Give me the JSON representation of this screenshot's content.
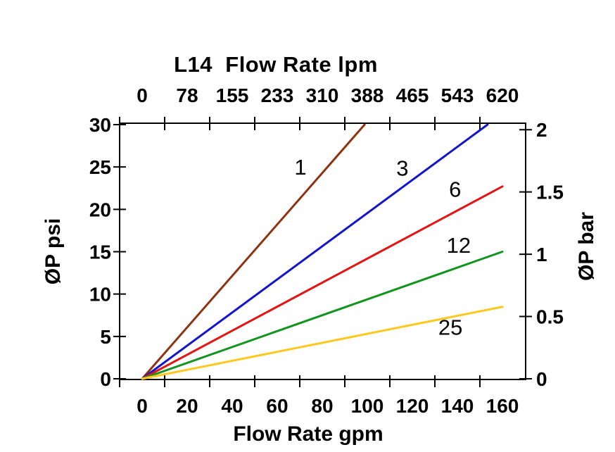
{
  "chart_data": {
    "type": "line",
    "title": "L14  Flow Rate lpm",
    "axes": {
      "top": {
        "label": "L14  Flow Rate lpm",
        "unit": "lpm",
        "ticks": [
          "0",
          "78",
          "155",
          "233",
          "310",
          "388",
          "465",
          "543",
          "620"
        ]
      },
      "bottom": {
        "label": "Flow Rate gpm",
        "unit": "gpm",
        "ticks": [
          "0",
          "20",
          "40",
          "60",
          "80",
          "100",
          "120",
          "140",
          "160"
        ],
        "range": [
          0,
          160
        ]
      },
      "left": {
        "label": "ØP psi",
        "unit": "psi",
        "ticks": [
          "0",
          "5",
          "10",
          "15",
          "20",
          "25",
          "30"
        ],
        "range": [
          0,
          30
        ]
      },
      "right": {
        "label": "ØP bar",
        "unit": "bar",
        "ticks": [
          "0",
          "0.5",
          "1",
          "1.5",
          "2"
        ],
        "range": [
          0,
          2
        ]
      }
    },
    "grid": false,
    "legend": "inline-labels",
    "series": [
      {
        "name": "1",
        "color": "#8C3412",
        "points_gpm_psi": [
          [
            0,
            0
          ],
          [
            98.8,
            30
          ]
        ],
        "label_at_gpm_psi": [
          70.3,
          25.0
        ]
      },
      {
        "name": "3",
        "color": "#1414CC",
        "points_gpm_psi": [
          [
            0,
            0
          ],
          [
            153.4,
            30
          ]
        ],
        "label_at_gpm_psi": [
          115.6,
          24.9
        ]
      },
      {
        "name": "6",
        "color": "#E31414",
        "points_gpm_psi": [
          [
            0,
            0
          ],
          [
            160,
            22.7
          ]
        ],
        "label_at_gpm_psi": [
          139.0,
          22.4
        ]
      },
      {
        "name": "12",
        "color": "#12941F",
        "points_gpm_psi": [
          [
            0,
            0
          ],
          [
            160,
            15.0
          ]
        ],
        "label_at_gpm_psi": [
          140.6,
          15.8
        ]
      },
      {
        "name": "25",
        "color": "#FFC81E",
        "points_gpm_psi": [
          [
            0,
            0
          ],
          [
            160,
            8.5
          ]
        ],
        "label_at_gpm_psi": [
          136.9,
          6.1
        ]
      }
    ],
    "axis_color": "#000000",
    "label_color": "#000000"
  }
}
